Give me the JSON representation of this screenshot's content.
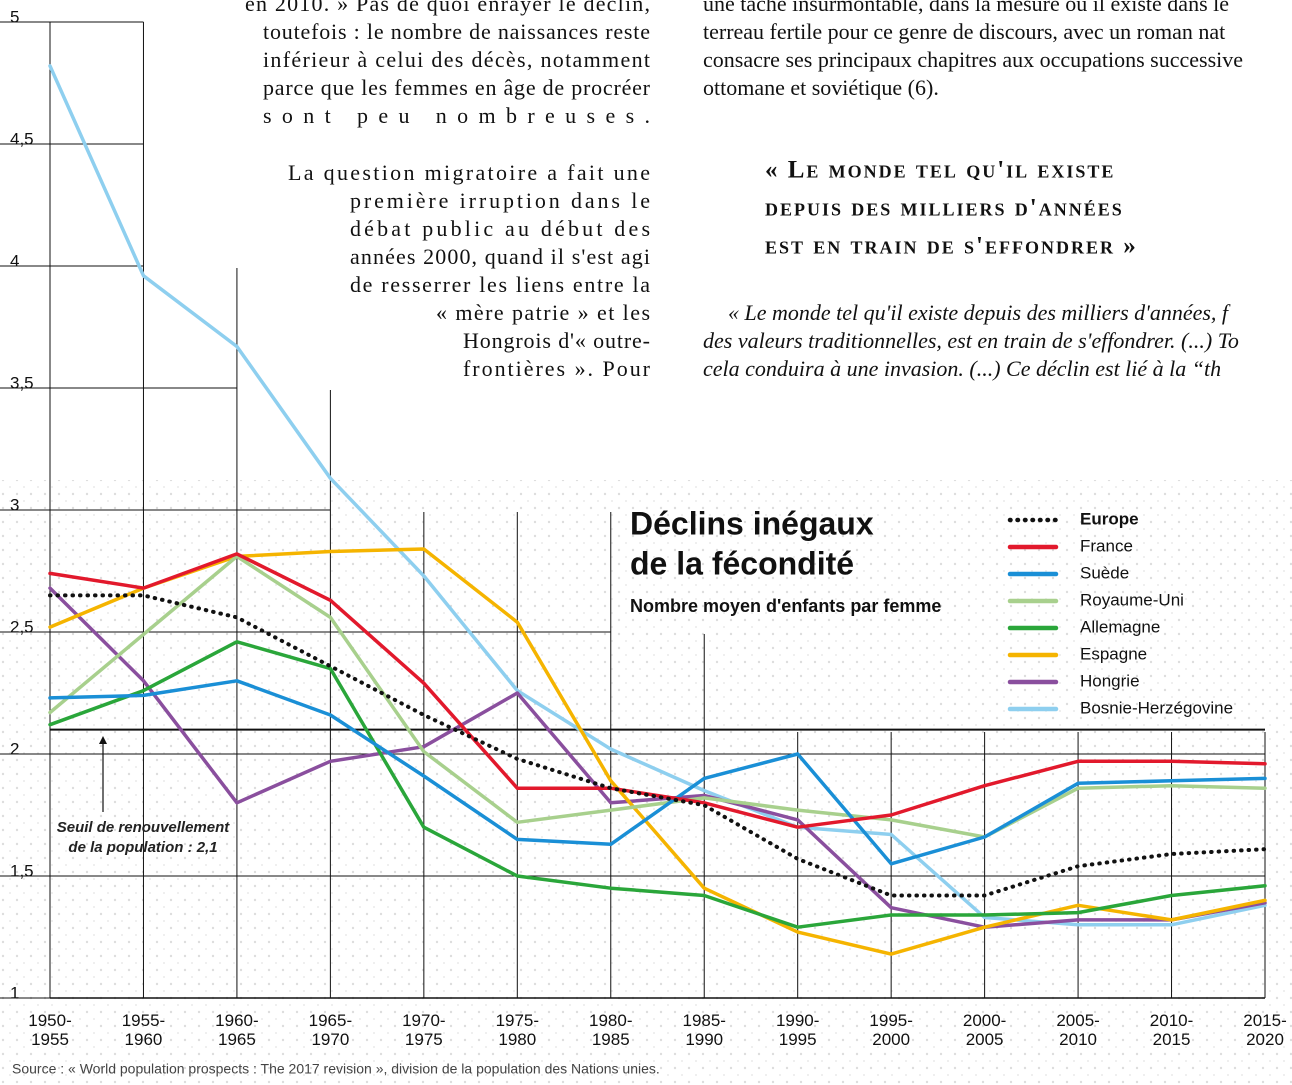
{
  "chart_data": {
    "type": "line",
    "title": [
      "Déclins inégaux",
      "de la fécondité"
    ],
    "subtitle": "Nombre moyen d'enfants par femme",
    "source": "Source : « World population prospects : The 2017 revision », division de la population des Nations unies.",
    "categories": [
      "1950-1955",
      "1955-1960",
      "1960-1965",
      "1965-1970",
      "1970-1975",
      "1975-1980",
      "1980-1985",
      "1985-1990",
      "1990-1995",
      "1995-2000",
      "2000-2005",
      "2005-2010",
      "2010-2015",
      "2015-2020"
    ],
    "ylim": [
      1,
      5
    ],
    "yticks": [
      1,
      {
        "value": 1.5,
        "label": "1,5"
      },
      2,
      {
        "value": 2.5,
        "label": "2,5"
      },
      3,
      {
        "value": 3.5,
        "label": "3,5"
      },
      4,
      {
        "value": 4.5,
        "label": "4,5"
      },
      5
    ],
    "grid": true,
    "legend": "top-right",
    "threshold": {
      "value": 2.1,
      "label": [
        "Seuil de renouvellement",
        "de la population : 2,1"
      ]
    },
    "series": [
      {
        "name": "Europe",
        "color": "#111111",
        "dotted": true,
        "values": [
          2.65,
          2.65,
          2.56,
          2.36,
          2.16,
          1.98,
          1.86,
          1.79,
          1.57,
          1.42,
          1.42,
          1.54,
          1.59,
          1.61
        ]
      },
      {
        "name": "France",
        "color": "#e2192c",
        "values": [
          2.74,
          2.68,
          2.82,
          2.63,
          2.29,
          1.86,
          1.86,
          1.8,
          1.7,
          1.75,
          1.87,
          1.97,
          1.97,
          1.96
        ]
      },
      {
        "name": "Suède",
        "color": "#1a8fd6",
        "values": [
          2.23,
          2.24,
          2.3,
          2.16,
          1.91,
          1.65,
          1.63,
          1.9,
          2.0,
          1.55,
          1.66,
          1.88,
          1.89,
          1.9
        ]
      },
      {
        "name": "Royaume-Uni",
        "color": "#a8d08d",
        "values": [
          2.17,
          2.49,
          2.81,
          2.56,
          2.01,
          1.72,
          1.77,
          1.82,
          1.77,
          1.73,
          1.66,
          1.86,
          1.87,
          1.86
        ]
      },
      {
        "name": "Allemagne",
        "color": "#2aa63a",
        "values": [
          2.12,
          2.26,
          2.46,
          2.35,
          1.7,
          1.5,
          1.45,
          1.42,
          1.29,
          1.34,
          1.34,
          1.35,
          1.42,
          1.46
        ]
      },
      {
        "name": "Espagne",
        "color": "#f5b400",
        "values": [
          2.52,
          2.68,
          2.81,
          2.83,
          2.84,
          2.54,
          1.89,
          1.45,
          1.27,
          1.18,
          1.29,
          1.38,
          1.32,
          1.4
        ]
      },
      {
        "name": "Hongrie",
        "color": "#8a4f9e",
        "values": [
          2.68,
          2.3,
          1.8,
          1.97,
          2.03,
          2.25,
          1.8,
          1.83,
          1.73,
          1.37,
          1.29,
          1.32,
          1.32,
          1.39
        ]
      },
      {
        "name": "Bosnie-Herzégovine",
        "color": "#8ecfef",
        "values": [
          4.82,
          3.96,
          3.67,
          3.13,
          2.73,
          2.26,
          2.02,
          1.85,
          1.7,
          1.67,
          1.33,
          1.3,
          1.3,
          1.38
        ]
      }
    ]
  },
  "article": {
    "left_paragraph_1": [
      "en 2010. » Pas de quoi enrayer le déclin,",
      "toutefois : le nombre de naissances reste",
      "inférieur à celui des décès, notamment",
      "parce que les femmes en âge de procréer",
      "sont peu nombreuses."
    ],
    "left_paragraph_2": [
      "La question migratoire a fait une",
      "première irruption dans le",
      "débat public au début des",
      "années 2000, quand il s'est agi",
      "de resserrer les liens entre la",
      "« mère patrie » et les",
      "Hongrois d'« outre-",
      "frontières ». Pour"
    ],
    "right_paragraph": [
      "une tâche insurmontable, dans la mesure où il existe dans le",
      "terreau fertile pour ce genre de discours, avec un roman nat",
      "consacre ses principaux chapitres aux occupations successive",
      "ottomane et soviétique (6)."
    ],
    "pull_quote": [
      "« Le monde tel qu'il existe",
      "depuis des milliers d'années",
      "est en train de s'effondrer »"
    ],
    "quote_paragraph": [
      "« Le monde tel qu'il existe depuis des milliers d'années, f",
      "des valeurs traditionnelles, est en train de s'effondrer. (...) To",
      "cela conduira à une invasion. (...) Ce déclin est lié à la “th"
    ]
  }
}
